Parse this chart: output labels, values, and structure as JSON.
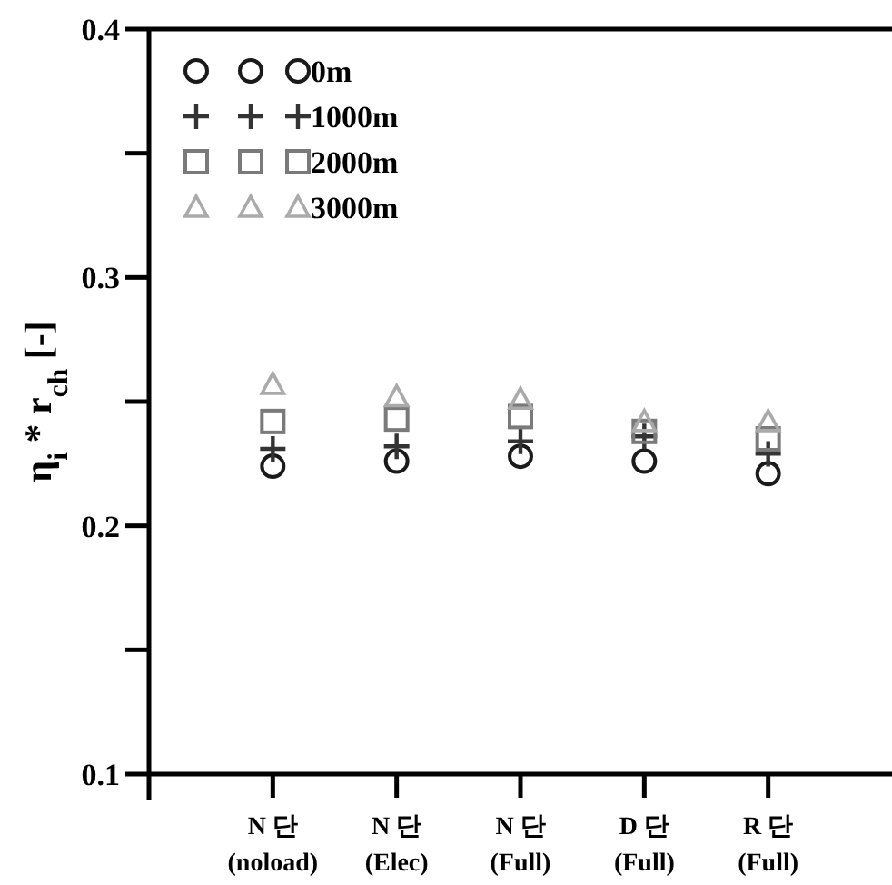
{
  "chart_data": {
    "type": "scatter",
    "ylabel": "η$_{i}$ * r$_{ch}$ [-]",
    "categories": [
      "N 단 (noload)",
      "N 단 (Elec)",
      "N 단 (Full)",
      "D 단 (Full)",
      "R 단 (Full)"
    ],
    "ylim": [
      0.1,
      0.4
    ],
    "yticks": [
      0.1,
      {
        "value": 0.15,
        "label": null
      },
      0.2,
      {
        "value": 0.25,
        "label": null
      },
      0.3,
      {
        "value": 0.35,
        "label": null
      },
      0.4
    ],
    "legend": "top left",
    "grid": false,
    "series": [
      {
        "name": "0m",
        "color": "#1a1a1a",
        "marker": "circle",
        "values": [
          0.224,
          0.226,
          0.228,
          0.226,
          0.221
        ]
      },
      {
        "name": "1000m",
        "color": "#333333",
        "marker": "cross",
        "values": [
          0.231,
          0.232,
          0.234,
          0.236,
          0.229
        ]
      },
      {
        "name": "2000m",
        "color": "#7a7a7a",
        "marker": "square",
        "values": [
          0.242,
          0.243,
          0.244,
          0.238,
          0.235
        ]
      },
      {
        "name": "3000m",
        "color": "#aaaaaa",
        "marker": "triangle",
        "values": [
          0.257,
          0.252,
          0.251,
          0.242,
          0.242
        ]
      }
    ]
  }
}
